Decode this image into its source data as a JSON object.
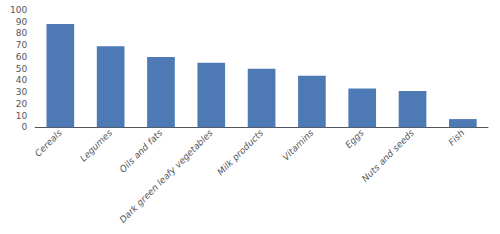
{
  "chart_data": {
    "type": "bar",
    "categories": [
      "Cereals",
      "Legumes",
      "Oils and fats",
      "Dark green leafy vegetables",
      "Milk products",
      "Vitamins",
      "Eggs",
      "Nuts and seeds",
      "Fish"
    ],
    "values": [
      88,
      69,
      60,
      55,
      50,
      44,
      33,
      31,
      7
    ],
    "color": "#4d7ab5",
    "ylim": [
      0,
      100
    ],
    "yticks": [
      0,
      10,
      20,
      30,
      40,
      50,
      60,
      70,
      80,
      90,
      100
    ],
    "grid": false
  }
}
